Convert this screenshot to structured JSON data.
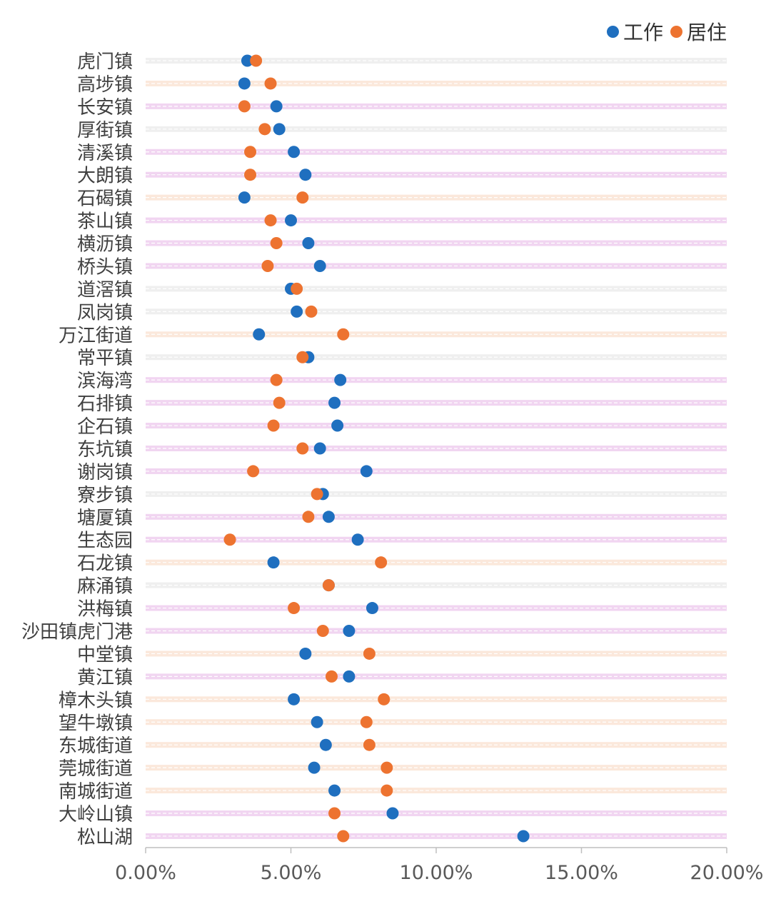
{
  "legend": {
    "work_label": "工作",
    "live_label": "居住"
  },
  "colors": {
    "work": "#1f6fbf",
    "live": "#ed7330",
    "band_pink": "#e6b3e6",
    "band_peach": "#f7d6bd",
    "band_gray": "#e2e2e2",
    "axis": "#bfbfbf"
  },
  "chart_data": {
    "type": "scatter",
    "xlim": [
      0,
      0.2
    ],
    "x_ticks": [
      "0.00%",
      "5.00%",
      "10.00%",
      "15.00%",
      "20.00%"
    ],
    "categories": [
      "虎门镇",
      "高埗镇",
      "长安镇",
      "厚街镇",
      "清溪镇",
      "大朗镇",
      "石碣镇",
      "茶山镇",
      "横沥镇",
      "桥头镇",
      "道滘镇",
      "凤岗镇",
      "万江街道",
      "常平镇",
      "滨海湾",
      "石排镇",
      "企石镇",
      "东坑镇",
      "谢岗镇",
      "寮步镇",
      "塘厦镇",
      "生态园",
      "石龙镇",
      "麻涌镇",
      "洪梅镇",
      "沙田镇虎门港",
      "中堂镇",
      "黄江镇",
      "樟木头镇",
      "望牛墩镇",
      "东城街道",
      "莞城街道",
      "南城街道",
      "大岭山镇",
      "松山湖"
    ],
    "bands": [
      "gray",
      "peach",
      "pink",
      "gray",
      "pink",
      "pink",
      "peach",
      "pink",
      "pink",
      "pink",
      "gray",
      "gray",
      "peach",
      "gray",
      "pink",
      "pink",
      "pink",
      "pink",
      "pink",
      "gray",
      "pink",
      "pink",
      "peach",
      "gray",
      "pink",
      "pink",
      "peach",
      "pink",
      "peach",
      "peach",
      "peach",
      "peach",
      "peach",
      "pink",
      "pink"
    ],
    "series": [
      {
        "name": "工作",
        "color": "#1f6fbf",
        "values": [
          0.035,
          0.034,
          0.045,
          0.046,
          0.051,
          0.055,
          0.034,
          0.05,
          0.056,
          0.06,
          0.05,
          0.052,
          0.039,
          0.056,
          0.067,
          0.065,
          0.066,
          0.06,
          0.076,
          0.061,
          0.063,
          0.073,
          0.044,
          0.063,
          0.078,
          0.07,
          0.055,
          0.07,
          0.051,
          0.059,
          0.062,
          0.058,
          0.065,
          0.085,
          0.13
        ]
      },
      {
        "name": "居住",
        "color": "#ed7330",
        "values": [
          0.038,
          0.043,
          0.034,
          0.041,
          0.036,
          0.036,
          0.054,
          0.043,
          0.045,
          0.042,
          0.052,
          0.057,
          0.068,
          0.054,
          0.045,
          0.046,
          0.044,
          0.054,
          0.037,
          0.059,
          0.056,
          0.029,
          0.081,
          0.063,
          0.051,
          0.061,
          0.077,
          0.064,
          0.082,
          0.076,
          0.077,
          0.083,
          0.083,
          0.065,
          0.068
        ]
      }
    ]
  }
}
